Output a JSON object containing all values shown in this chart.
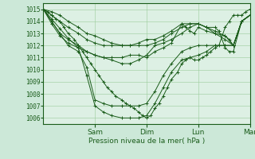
{
  "bg_color": "#cce8d8",
  "plot_bg_color": "#ddf0e4",
  "grid_color": "#99cc99",
  "line_color": "#1a5c1a",
  "ylim": [
    1005.5,
    1015.5
  ],
  "yticks": [
    1006,
    1007,
    1008,
    1009,
    1010,
    1011,
    1012,
    1013,
    1014,
    1015
  ],
  "day_labels": [
    "Sam",
    "Dim",
    "Lun",
    "Mar"
  ],
  "day_positions": [
    0.25,
    0.5,
    0.75,
    1.0
  ],
  "xlabel": "Pression niveau de la mer( hPa )",
  "series": [
    {
      "x": [
        0,
        0.04,
        0.08,
        0.12,
        0.17,
        0.21,
        0.25,
        0.29,
        0.33,
        0.38,
        0.42,
        0.46,
        0.5,
        0.54,
        0.58,
        0.62,
        0.67,
        0.71,
        0.75,
        0.79,
        0.83,
        0.88,
        0.92,
        0.96,
        1.0
      ],
      "y": [
        1015.0,
        1014.2,
        1013.4,
        1012.6,
        1011.8,
        1009.5,
        1007.0,
        1006.5,
        1006.2,
        1006.0,
        1006.0,
        1006.0,
        1006.2,
        1007.2,
        1008.5,
        1009.8,
        1010.8,
        1011.0,
        1011.2,
        1011.5,
        1012.0,
        1012.0,
        1012.0,
        1014.0,
        1014.5
      ]
    },
    {
      "x": [
        0,
        0.04,
        0.08,
        0.12,
        0.17,
        0.21,
        0.25,
        0.29,
        0.33,
        0.38,
        0.42,
        0.46,
        0.5,
        0.54,
        0.58,
        0.62,
        0.67,
        0.71,
        0.75,
        0.79,
        0.83,
        0.88,
        0.92,
        0.96,
        1.0
      ],
      "y": [
        1015.0,
        1014.0,
        1013.0,
        1012.0,
        1011.5,
        1010.2,
        1007.5,
        1007.2,
        1007.0,
        1007.0,
        1007.0,
        1007.0,
        1007.2,
        1008.2,
        1009.5,
        1010.5,
        1011.5,
        1011.8,
        1012.0,
        1012.0,
        1012.0,
        1012.0,
        1012.0,
        1014.0,
        1014.5
      ]
    },
    {
      "x": [
        0,
        0.04,
        0.08,
        0.12,
        0.17,
        0.21,
        0.25,
        0.29,
        0.33,
        0.38,
        0.42,
        0.46,
        0.5,
        0.54,
        0.58,
        0.62,
        0.67,
        0.71,
        0.75,
        0.79,
        0.83,
        0.88,
        0.92,
        0.96,
        1.0
      ],
      "y": [
        1015.0,
        1014.0,
        1013.0,
        1012.5,
        1012.0,
        1011.5,
        1011.2,
        1011.0,
        1010.8,
        1010.5,
        1010.5,
        1010.8,
        1011.2,
        1012.0,
        1012.2,
        1012.5,
        1013.0,
        1013.5,
        1013.8,
        1013.5,
        1013.0,
        1012.5,
        1012.0,
        1014.0,
        1014.5
      ]
    },
    {
      "x": [
        0,
        0.04,
        0.08,
        0.12,
        0.17,
        0.21,
        0.25,
        0.29,
        0.33,
        0.38,
        0.42,
        0.46,
        0.5,
        0.54,
        0.58,
        0.62,
        0.67,
        0.71,
        0.75,
        0.79,
        0.83,
        0.88,
        0.92,
        0.96,
        1.0
      ],
      "y": [
        1015.0,
        1014.5,
        1014.0,
        1013.5,
        1013.0,
        1012.5,
        1012.2,
        1012.0,
        1012.0,
        1012.0,
        1012.0,
        1012.0,
        1012.0,
        1012.2,
        1012.5,
        1013.0,
        1013.5,
        1013.8,
        1013.8,
        1013.5,
        1013.2,
        1012.8,
        1012.0,
        1014.0,
        1014.5
      ]
    },
    {
      "x": [
        0,
        0.04,
        0.08,
        0.12,
        0.17,
        0.21,
        0.25,
        0.29,
        0.33,
        0.38,
        0.42,
        0.46,
        0.5,
        0.54,
        0.58,
        0.62,
        0.67,
        0.71,
        0.75,
        0.79,
        0.83,
        0.85,
        0.88,
        0.9,
        0.92,
        0.96,
        1.0
      ],
      "y": [
        1015.0,
        1014.8,
        1014.5,
        1014.0,
        1013.5,
        1013.0,
        1012.8,
        1012.5,
        1012.2,
        1012.0,
        1012.0,
        1012.2,
        1012.5,
        1012.5,
        1012.8,
        1013.2,
        1013.8,
        1013.8,
        1013.8,
        1013.5,
        1013.5,
        1013.2,
        1011.8,
        1011.5,
        1011.5,
        1014.0,
        1014.5
      ]
    },
    {
      "x": [
        0,
        0.04,
        0.08,
        0.12,
        0.17,
        0.21,
        0.25,
        0.29,
        0.33,
        0.38,
        0.42,
        0.46,
        0.5,
        0.54,
        0.58,
        0.62,
        0.67,
        0.69,
        0.71,
        0.73,
        0.75,
        0.79,
        0.83,
        0.88,
        0.9,
        0.92,
        0.96,
        1.0
      ],
      "y": [
        1015.0,
        1013.8,
        1012.8,
        1012.2,
        1011.8,
        1011.5,
        1011.2,
        1011.0,
        1011.0,
        1011.0,
        1011.2,
        1011.2,
        1011.0,
        1011.5,
        1011.8,
        1012.2,
        1013.8,
        1013.5,
        1013.2,
        1013.0,
        1013.5,
        1013.2,
        1013.0,
        1012.8,
        1012.5,
        1012.0,
        1014.0,
        1014.5
      ]
    },
    {
      "x": [
        0,
        0.02,
        0.04,
        0.06,
        0.08,
        0.1,
        0.12,
        0.15,
        0.17,
        0.19,
        0.21,
        0.23,
        0.25,
        0.27,
        0.29,
        0.31,
        0.33,
        0.35,
        0.38,
        0.4,
        0.42,
        0.44,
        0.46,
        0.48,
        0.5,
        0.52,
        0.54,
        0.56,
        0.58,
        0.6,
        0.62,
        0.65,
        0.67,
        0.69,
        0.71,
        0.73,
        0.75,
        0.77,
        0.79,
        0.81,
        0.83,
        0.85,
        0.88,
        0.9,
        0.92,
        0.94,
        0.96,
        0.98,
        1.0
      ],
      "y": [
        1015.0,
        1014.8,
        1014.5,
        1014.2,
        1014.0,
        1013.5,
        1013.0,
        1012.5,
        1012.0,
        1011.5,
        1011.0,
        1010.5,
        1010.0,
        1009.5,
        1009.0,
        1008.5,
        1008.2,
        1007.8,
        1007.5,
        1007.2,
        1007.0,
        1006.8,
        1006.5,
        1006.2,
        1006.0,
        1006.2,
        1006.8,
        1007.2,
        1007.8,
        1008.5,
        1009.2,
        1009.8,
        1010.5,
        1010.8,
        1011.0,
        1010.8,
        1010.8,
        1011.0,
        1011.2,
        1011.5,
        1011.8,
        1012.0,
        1013.5,
        1014.0,
        1014.5,
        1014.5,
        1014.5,
        1014.8,
        1015.0
      ]
    }
  ]
}
